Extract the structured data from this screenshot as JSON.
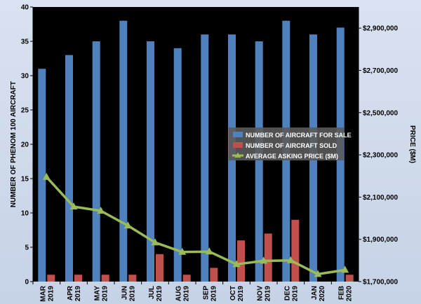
{
  "chart_data": {
    "type": "bar+line",
    "categories": [
      [
        "MAR",
        "2019"
      ],
      [
        "APR",
        "2019"
      ],
      [
        "MAY",
        "2019"
      ],
      [
        "JUN",
        "2019"
      ],
      [
        "JUL",
        "2019"
      ],
      [
        "AUG",
        "2019"
      ],
      [
        "SEP",
        "2019"
      ],
      [
        "OCT",
        "2019"
      ],
      [
        "NOV",
        "2019"
      ],
      [
        "DEC",
        "2019"
      ],
      [
        "JAN",
        "2020"
      ],
      [
        "FEB",
        "2020"
      ]
    ],
    "series": [
      {
        "name": "NUMBER OF AIRCRAFT FOR SALE",
        "type": "bar",
        "axis": "left",
        "color": "#4f81bd",
        "values": [
          31,
          33,
          35,
          38,
          35,
          34,
          36,
          36,
          35,
          38,
          36,
          37
        ]
      },
      {
        "name": "NUMBER OF AIRCRAFT SOLD",
        "type": "bar",
        "axis": "left",
        "color": "#c0504d",
        "values": [
          1,
          1,
          1,
          1,
          4,
          1,
          2,
          6,
          7,
          9,
          0,
          1
        ]
      },
      {
        "name": "AVERAGE ASKING PRICE ($M)",
        "type": "line",
        "axis": "right",
        "color": "#9bbb59",
        "values": [
          2195000,
          2055000,
          2035000,
          1965000,
          1885000,
          1840000,
          1842000,
          1782000,
          1798000,
          1800000,
          1735000,
          1755000
        ]
      }
    ],
    "ylabel": "NUMBER OF PHENOM 100 AIRCRAFT",
    "ylim": [
      0,
      40
    ],
    "yticks": [
      "0",
      "5",
      "10",
      "15",
      "20",
      "25",
      "30",
      "35",
      "40"
    ],
    "y2label": "PRICE ($M)",
    "y2lim": [
      1700000,
      3000000
    ],
    "y2ticks": [
      "$1,700,000",
      "$1,900,000",
      "$2,100,000",
      "$2,300,000",
      "$2,500,000",
      "$2,700,000",
      "$2,900,000"
    ],
    "legend_position": "middle-right",
    "plot_background": "#000000",
    "grid": false
  }
}
